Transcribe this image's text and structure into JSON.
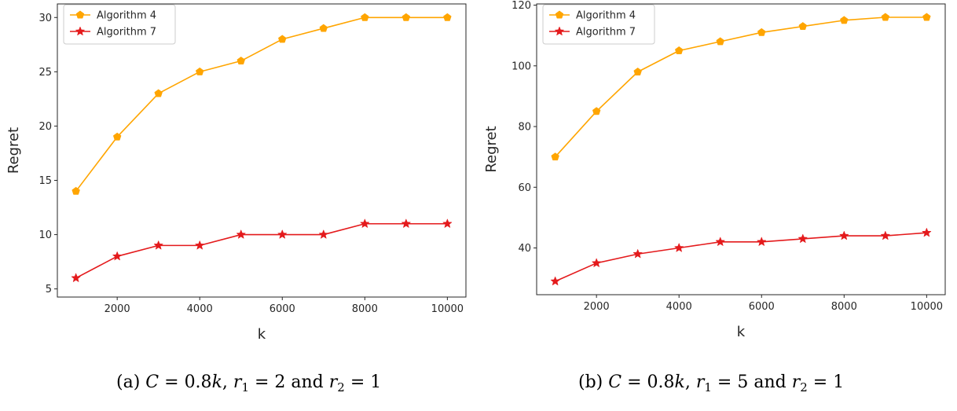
{
  "chart_data": [
    {
      "type": "line",
      "xlabel": "k",
      "ylabel": "Regret",
      "x": [
        1000,
        2000,
        3000,
        4000,
        5000,
        6000,
        7000,
        8000,
        9000,
        10000
      ],
      "xticks": [
        2000,
        4000,
        6000,
        8000,
        10000
      ],
      "yticks": [
        5,
        10,
        15,
        20,
        25,
        30
      ],
      "xlim": [
        550,
        10450
      ],
      "ylim": [
        4.25,
        31.25
      ],
      "grid": false,
      "legend_position": "upper-left",
      "series": [
        {
          "name": "Algorithm 4",
          "color": "#FFA500",
          "marker": "pentagon",
          "values": [
            14,
            19,
            23,
            25,
            26,
            28,
            29,
            30,
            30,
            30
          ]
        },
        {
          "name": "Algorithm 7",
          "color": "#E41A1C",
          "marker": "star",
          "values": [
            6,
            8,
            9,
            9,
            10,
            10,
            10,
            11,
            11,
            11
          ]
        }
      ],
      "caption": {
        "label": "(a)",
        "C": "C",
        "C_val": "0.8",
        "k": "k",
        "r1": "2",
        "r2": "1"
      }
    },
    {
      "type": "line",
      "xlabel": "k",
      "ylabel": "Regret",
      "x": [
        1000,
        2000,
        3000,
        4000,
        5000,
        6000,
        7000,
        8000,
        9000,
        10000
      ],
      "xticks": [
        2000,
        4000,
        6000,
        8000,
        10000
      ],
      "yticks": [
        40,
        60,
        80,
        100,
        120
      ],
      "xlim": [
        550,
        10450
      ],
      "ylim": [
        24.6,
        120.4
      ],
      "grid": false,
      "legend_position": "upper-left",
      "series": [
        {
          "name": "Algorithm 4",
          "color": "#FFA500",
          "marker": "pentagon",
          "values": [
            70,
            85,
            98,
            105,
            108,
            111,
            113,
            115,
            116,
            116
          ]
        },
        {
          "name": "Algorithm 7",
          "color": "#E41A1C",
          "marker": "star",
          "values": [
            29,
            35,
            38,
            40,
            42,
            42,
            43,
            44,
            44,
            45
          ]
        }
      ],
      "caption": {
        "label": "(b)",
        "C": "C",
        "C_val": "0.8",
        "k": "k",
        "r1": "5",
        "r2": "1"
      }
    }
  ]
}
